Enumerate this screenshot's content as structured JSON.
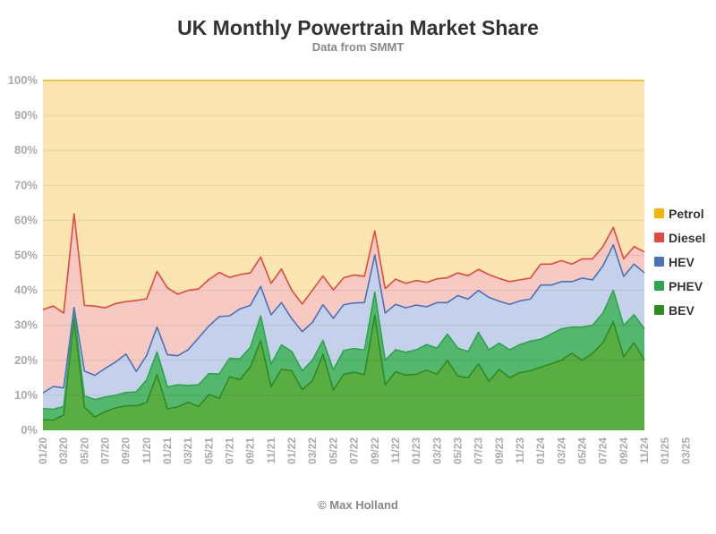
{
  "chart_data": {
    "type": "area",
    "stacked": true,
    "title": "UK Monthly Powertrain Market Share",
    "subtitle": "Data from SMMT",
    "credit": "© Max Holland",
    "ylim": [
      0,
      100
    ],
    "y_ticks": [
      "0%",
      "10%",
      "20%",
      "30%",
      "40%",
      "50%",
      "60%",
      "70%",
      "80%",
      "90%",
      "100%"
    ],
    "x_tick_labels": [
      "01/20",
      "03/20",
      "05/20",
      "07/20",
      "09/20",
      "11/20",
      "01/21",
      "03/21",
      "05/21",
      "07/21",
      "09/21",
      "11/21",
      "01/22",
      "03/22",
      "05/22",
      "07/22",
      "09/22",
      "11/22",
      "01/23",
      "03/23",
      "05/23",
      "07/23",
      "09/23",
      "11/23",
      "01/24",
      "03/24",
      "05/24",
      "07/24",
      "09/24",
      "11/24",
      "01/25",
      "03/25"
    ],
    "legend_position": "right",
    "grid": true,
    "series": [
      {
        "name": "BEV",
        "color": "#2e8b1f",
        "values": [
          3.0,
          2.9,
          4.4,
          31.8,
          6.6,
          3.8,
          5.3,
          6.4,
          7.0,
          7.0,
          7.9,
          15.9,
          6.1,
          6.7,
          8.0,
          6.8,
          10.2,
          9.1,
          15.3,
          14.5,
          18.1,
          25.6,
          12.5,
          17.4,
          17.0,
          11.6,
          14.2,
          21.7,
          11.5,
          16.0,
          16.6,
          15.9,
          32.9,
          13.0,
          16.7,
          15.8,
          16.0,
          17.2,
          16.0,
          20.0,
          15.5,
          15.0,
          19.0,
          14.0,
          17.4,
          15.0,
          16.5,
          17.0,
          18.0,
          19.0,
          20.0,
          22.0,
          20.0,
          22.0,
          25.0,
          31.0,
          21.0,
          25.0,
          20.0
        ]
      },
      {
        "name": "PHEV",
        "color": "#2ea44f",
        "values": [
          3.2,
          3.1,
          2.4,
          2.0,
          3.2,
          5.0,
          4.2,
          3.6,
          3.8,
          4.0,
          6.5,
          6.5,
          6.3,
          6.3,
          4.8,
          6.2,
          6.0,
          7.0,
          5.3,
          5.9,
          5.6,
          7.1,
          6.4,
          7.0,
          5.5,
          5.4,
          5.9,
          4.0,
          5.8,
          6.8,
          6.8,
          7.0,
          6.6,
          7.0,
          6.3,
          6.5,
          7.0,
          7.3,
          7.5,
          7.5,
          8.0,
          7.5,
          9.0,
          9.0,
          7.5,
          8.0,
          8.0,
          8.5,
          8.0,
          8.5,
          9.0,
          7.5,
          9.5,
          8.0,
          8.5,
          9.0,
          9.0,
          8.0,
          9.0
        ]
      },
      {
        "name": "HEV",
        "color": "#4a72b8",
        "values": [
          4.5,
          6.5,
          5.3,
          1.3,
          7.1,
          6.9,
          8.2,
          9.5,
          11.0,
          5.8,
          7.0,
          7.1,
          9.2,
          8.3,
          10.2,
          13.4,
          13.6,
          16.4,
          12.1,
          14.3,
          12.0,
          8.4,
          14.1,
          12.1,
          9.4,
          11.2,
          10.8,
          10.2,
          14.7,
          13.1,
          13.0,
          13.6,
          10.6,
          13.5,
          13.0,
          12.7,
          12.8,
          10.8,
          13.0,
          9.0,
          15.0,
          15.0,
          12.0,
          15.0,
          12.0,
          13.0,
          12.5,
          12.0,
          15.5,
          14.0,
          13.5,
          13.0,
          14.0,
          13.0,
          13.5,
          13.0,
          14.0,
          14.5,
          16.0
        ]
      },
      {
        "name": "Diesel",
        "color": "#e04a3f",
        "values": [
          23.8,
          23.0,
          21.4,
          26.8,
          18.8,
          19.8,
          17.3,
          16.7,
          15.0,
          20.3,
          16.2,
          15.9,
          19.1,
          17.6,
          17.0,
          14.0,
          13.3,
          12.6,
          11.0,
          9.8,
          9.3,
          8.4,
          9.0,
          9.6,
          8.1,
          7.9,
          9.2,
          8.2,
          8.1,
          7.7,
          8.0,
          7.5,
          6.9,
          7.0,
          7.2,
          7.0,
          7.0,
          7.0,
          6.8,
          7.1,
          6.5,
          6.7,
          6.0,
          6.5,
          6.5,
          6.5,
          6.0,
          6.0,
          6.0,
          6.0,
          6.0,
          5.0,
          5.5,
          6.0,
          5.5,
          5.0,
          5.0,
          5.0,
          6.0
        ]
      },
      {
        "name": "Petrol",
        "color": "#f5b400",
        "values": [
          65.5,
          64.5,
          66.5,
          38.1,
          64.3,
          64.5,
          65.0,
          63.8,
          63.2,
          62.9,
          62.4,
          54.6,
          59.3,
          61.1,
          60.0,
          59.6,
          57.5,
          54.9,
          56.3,
          55.5,
          55.0,
          50.5,
          58.0,
          53.9,
          60.0,
          63.9,
          59.9,
          55.9,
          59.9,
          56.4,
          55.6,
          56.0,
          43.0,
          59.5,
          56.8,
          58.0,
          57.2,
          57.7,
          56.7,
          56.4,
          55.0,
          55.8,
          54.0,
          55.5,
          56.6,
          57.5,
          57.0,
          56.5,
          52.5,
          52.5,
          51.5,
          52.5,
          51.0,
          51.0,
          47.5,
          42.0,
          51.0,
          47.5,
          49.0
        ]
      }
    ]
  }
}
